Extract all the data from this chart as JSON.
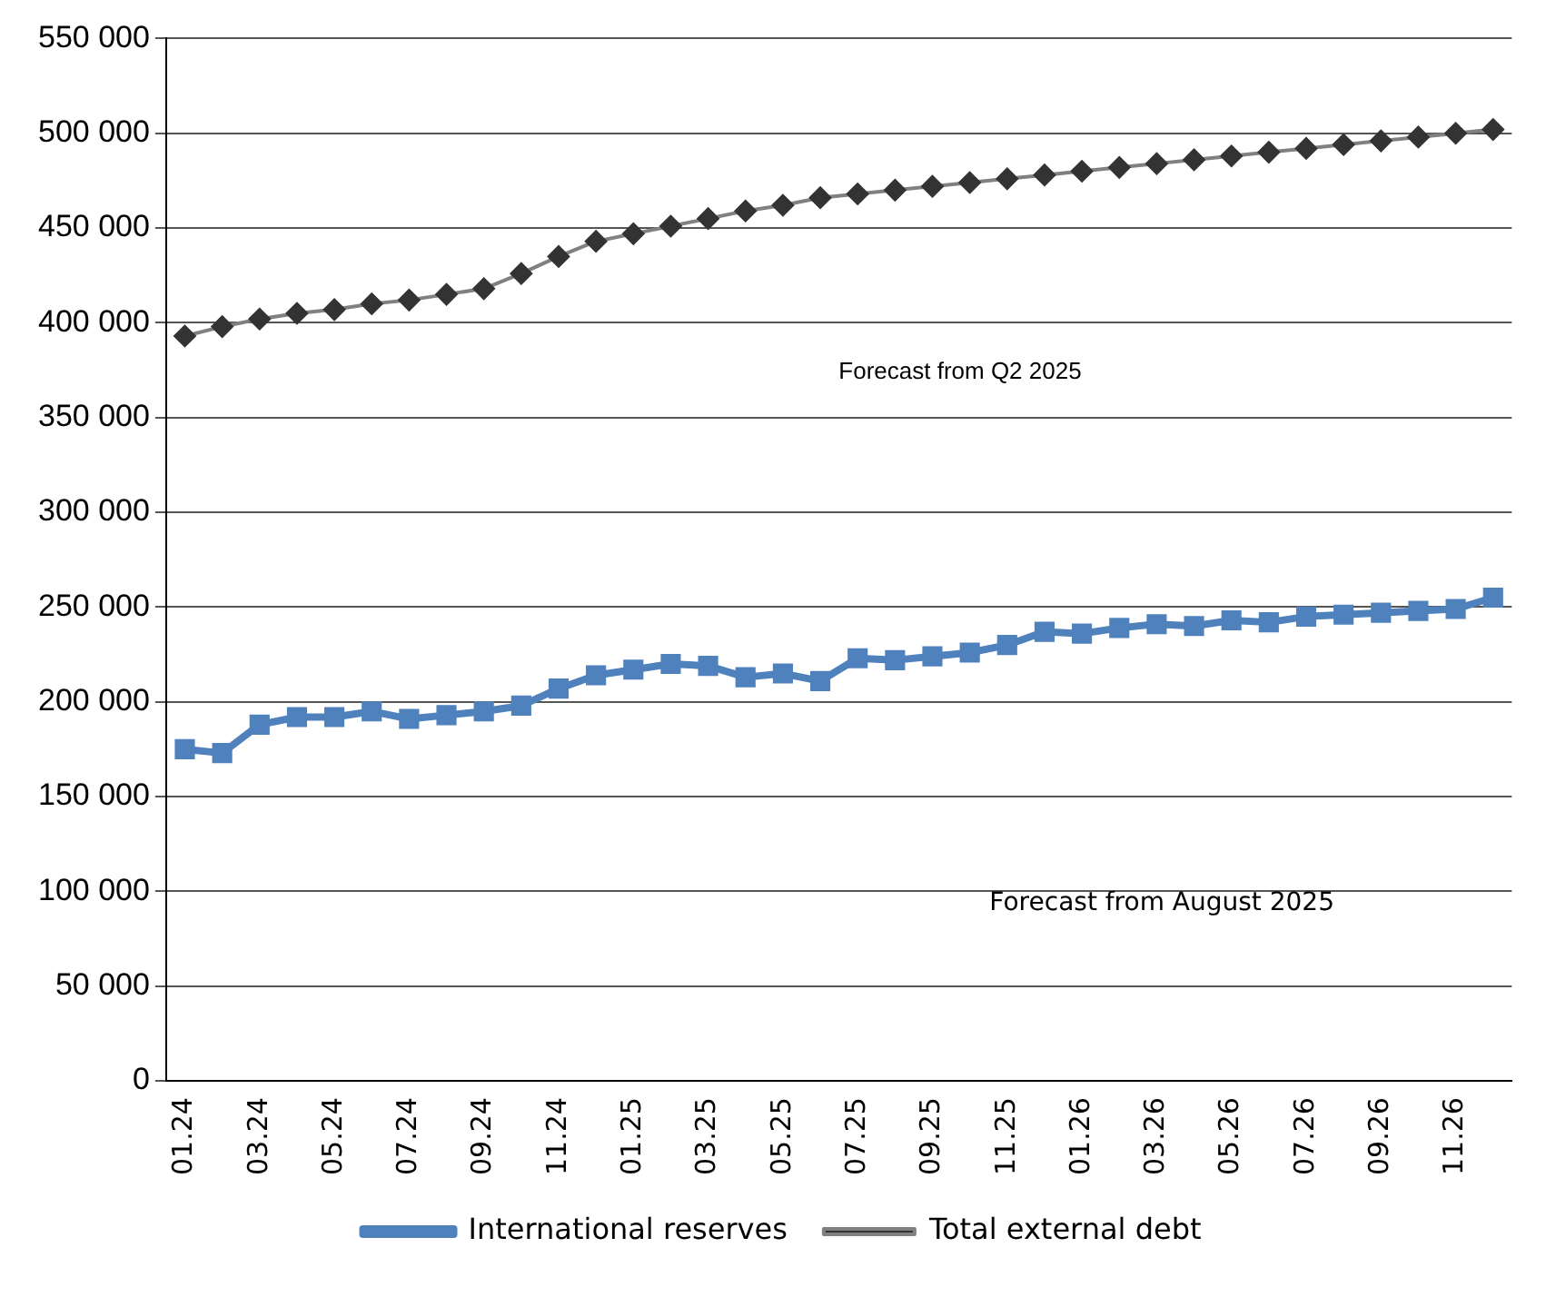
{
  "chart_data": {
    "type": "line",
    "categories": [
      "01.24",
      null,
      "03.24",
      null,
      "05.24",
      null,
      "07.24",
      null,
      "09.24",
      null,
      "11.24",
      null,
      "01.25",
      null,
      "03.25",
      null,
      "05.25",
      null,
      "07.25",
      null,
      "09.25",
      null,
      "11.25",
      null,
      "01.26",
      null,
      "03.26",
      null,
      "05.26",
      null,
      "07.26",
      null,
      "09.26",
      null,
      "11.26",
      null
    ],
    "series": [
      {
        "name": "International reserves",
        "color": "#4f81bd",
        "marker": "square",
        "values": [
          175000,
          173000,
          188000,
          192000,
          192000,
          195000,
          191000,
          193000,
          195000,
          198000,
          207000,
          214000,
          217000,
          220000,
          219000,
          213000,
          215000,
          211000,
          223000,
          222000,
          224000,
          226000,
          230000,
          237000,
          236000,
          239000,
          241000,
          240000,
          243000,
          242000,
          245000,
          246000,
          247000,
          248000,
          249000,
          255000
        ]
      },
      {
        "name": "Total external debt",
        "color": "#808080",
        "marker": "diamond",
        "values": [
          393000,
          398000,
          402000,
          405000,
          407000,
          410000,
          412000,
          415000,
          418000,
          426000,
          435000,
          443000,
          447000,
          451000,
          455000,
          459000,
          462000,
          466000,
          468000,
          470000,
          472000,
          474000,
          476000,
          478000,
          480000,
          482000,
          484000,
          486000,
          488000,
          490000,
          492000,
          494000,
          496000,
          498000,
          500000,
          502000
        ]
      }
    ],
    "ylim": [
      0,
      550000
    ],
    "yticks": [
      0,
      {
        "value": 50000,
        "label": "50 000"
      },
      {
        "value": 100000,
        "label": "100 000"
      },
      {
        "value": 150000,
        "label": "150 000"
      },
      {
        "value": 200000,
        "label": "200 000"
      },
      {
        "value": 250000,
        "label": "250 000"
      },
      {
        "value": 300000,
        "label": "300 000"
      },
      {
        "value": 350000,
        "label": "350 000"
      },
      {
        "value": 400000,
        "label": "400 000"
      },
      {
        "value": 450000,
        "label": "450 000"
      },
      {
        "value": 500000,
        "label": "500 000"
      },
      {
        "value": 550000,
        "label": "550 000"
      }
    ],
    "grid": "y",
    "legend": "bottom",
    "line_style": "solid",
    "annotations": [
      "Forecast from Q2 2025",
      "Forecast from August 2025"
    ]
  }
}
